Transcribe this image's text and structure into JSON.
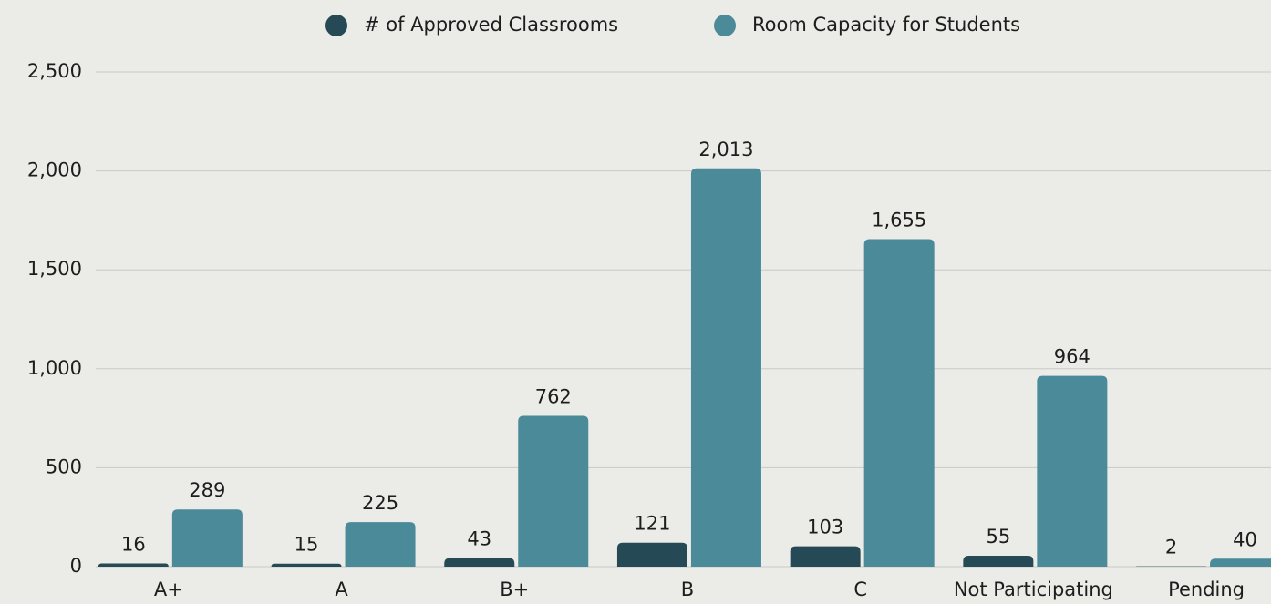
{
  "chart_data": {
    "type": "bar",
    "categories": [
      "A+",
      "A",
      "B+",
      "B",
      "C",
      "Not Participating",
      "Pending"
    ],
    "series": [
      {
        "name": "# of Approved Classrooms",
        "color": "#264a55",
        "values": [
          16,
          15,
          43,
          121,
          103,
          55,
          2
        ]
      },
      {
        "name": "Room Capacity for Students",
        "color": "#4a8a99",
        "values": [
          289,
          225,
          762,
          2013,
          1655,
          964,
          40
        ],
        "value_labels": [
          "289",
          "225",
          "762",
          "2,013",
          "1,655",
          "964",
          "40"
        ]
      }
    ],
    "ylim": [
      0,
      2500
    ],
    "yticks": [
      0,
      500,
      {
        "value": 1000,
        "label": "1,000"
      },
      {
        "value": 1500,
        "label": "1,500"
      },
      {
        "value": 2000,
        "label": "2,000"
      },
      {
        "value": 2500,
        "label": "2,500"
      }
    ],
    "grid": true,
    "legend": "top"
  }
}
